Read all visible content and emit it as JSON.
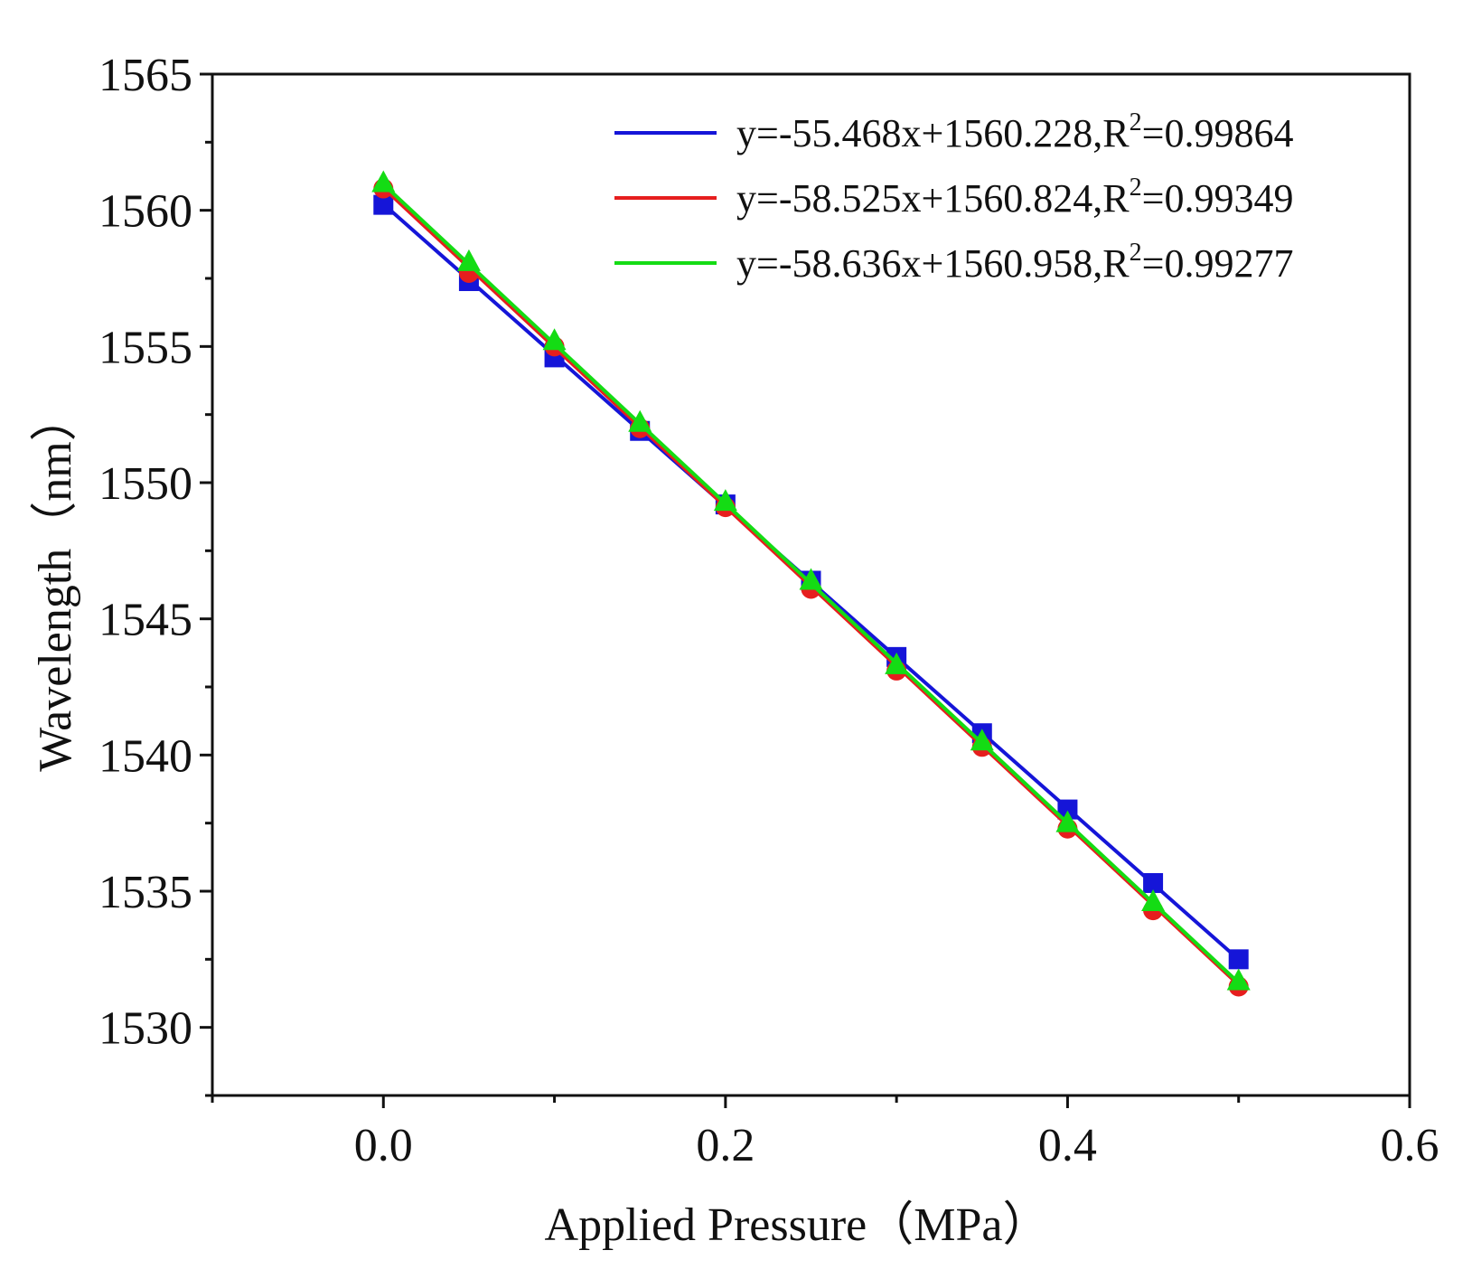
{
  "chart_data": {
    "type": "scatter",
    "title": "",
    "xlabel": "Applied Pressure（MPa）",
    "ylabel": "Wavelength（nm）",
    "xlim": [
      -0.1,
      0.6
    ],
    "ylim": [
      1527.5,
      1565
    ],
    "x_ticks": [
      0.0,
      0.2,
      0.4,
      0.6
    ],
    "x_tick_labels": [
      "0.0",
      "0.2",
      "0.4",
      "0.6"
    ],
    "y_ticks": [
      1530,
      1535,
      1540,
      1545,
      1550,
      1555,
      1560,
      1565
    ],
    "y_tick_labels": [
      "1530",
      "1535",
      "1540",
      "1545",
      "1550",
      "1555",
      "1560",
      "1565"
    ],
    "grid": false,
    "legend_position": "top-right",
    "x": [
      0.0,
      0.05,
      0.1,
      0.15,
      0.2,
      0.25,
      0.3,
      0.35,
      0.4,
      0.45,
      0.5
    ],
    "series": [
      {
        "name": "y=-55.468x+1560.228,R²=0.99864",
        "legend": {
          "prefix": "y=-55.468x+1560.228,R",
          "sup": "2",
          "suffix": "=0.99864"
        },
        "color": "#1515d8",
        "marker": "square",
        "values": [
          1560.2,
          1557.4,
          1554.6,
          1551.9,
          1549.2,
          1546.4,
          1543.6,
          1540.8,
          1538.0,
          1535.3,
          1532.5
        ],
        "fit": {
          "slope": -55.468,
          "intercept": 1560.228
        }
      },
      {
        "name": "y=-58.525x+1560.824,R²=0.99349",
        "legend": {
          "prefix": "y=-58.525x+1560.824,R",
          "sup": "2",
          "suffix": "=0.99349"
        },
        "color": "#e61e1e",
        "marker": "circle",
        "values": [
          1560.8,
          1557.7,
          1555.0,
          1552.0,
          1549.1,
          1546.1,
          1543.1,
          1540.3,
          1537.3,
          1534.3,
          1531.5
        ],
        "fit": {
          "slope": -58.525,
          "intercept": 1560.824
        }
      },
      {
        "name": "y=-58.636x+1560.958,R²=0.99277",
        "legend": {
          "prefix": "y=-58.636x+1560.958,R",
          "sup": "2",
          "suffix": "=0.99277"
        },
        "color": "#14dc14",
        "marker": "triangle",
        "values": [
          1561.0,
          1558.1,
          1555.2,
          1552.2,
          1549.3,
          1546.4,
          1543.3,
          1540.5,
          1537.5,
          1534.6,
          1531.7
        ],
        "fit": {
          "slope": -58.636,
          "intercept": 1560.958
        }
      }
    ]
  }
}
